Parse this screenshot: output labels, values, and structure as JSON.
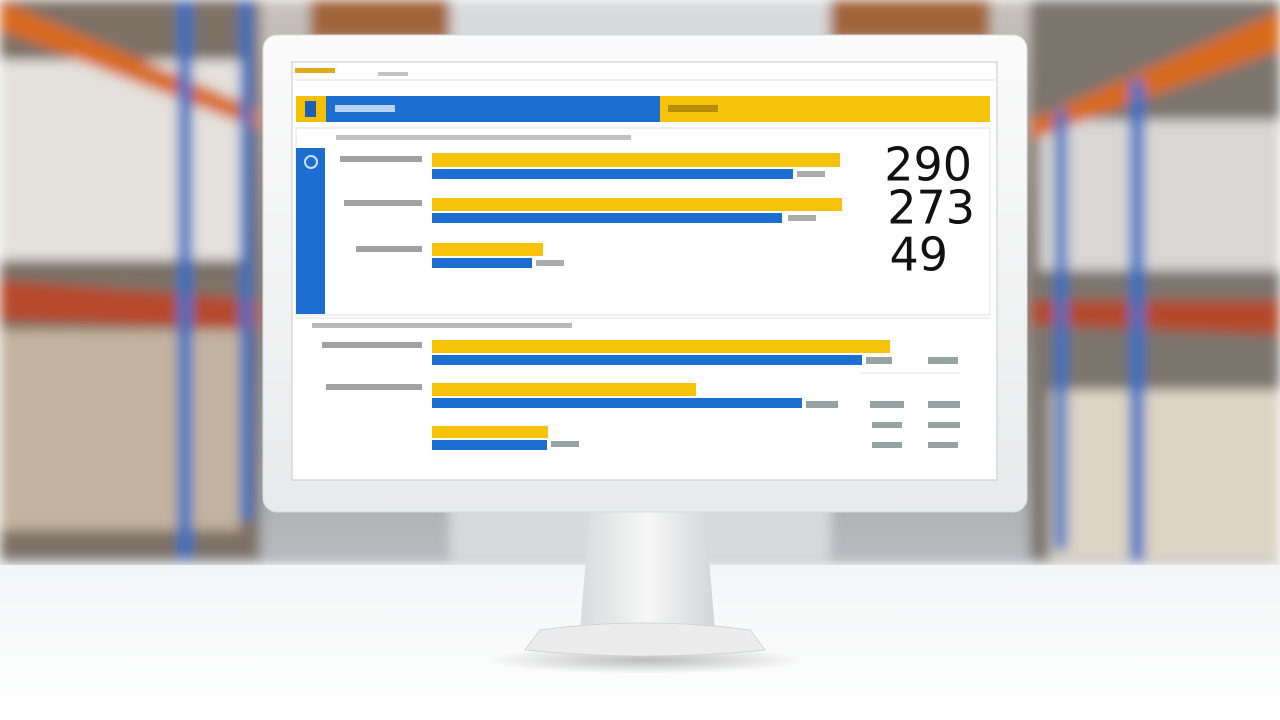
{
  "screen": {
    "stats": [
      290,
      273,
      49
    ]
  }
}
